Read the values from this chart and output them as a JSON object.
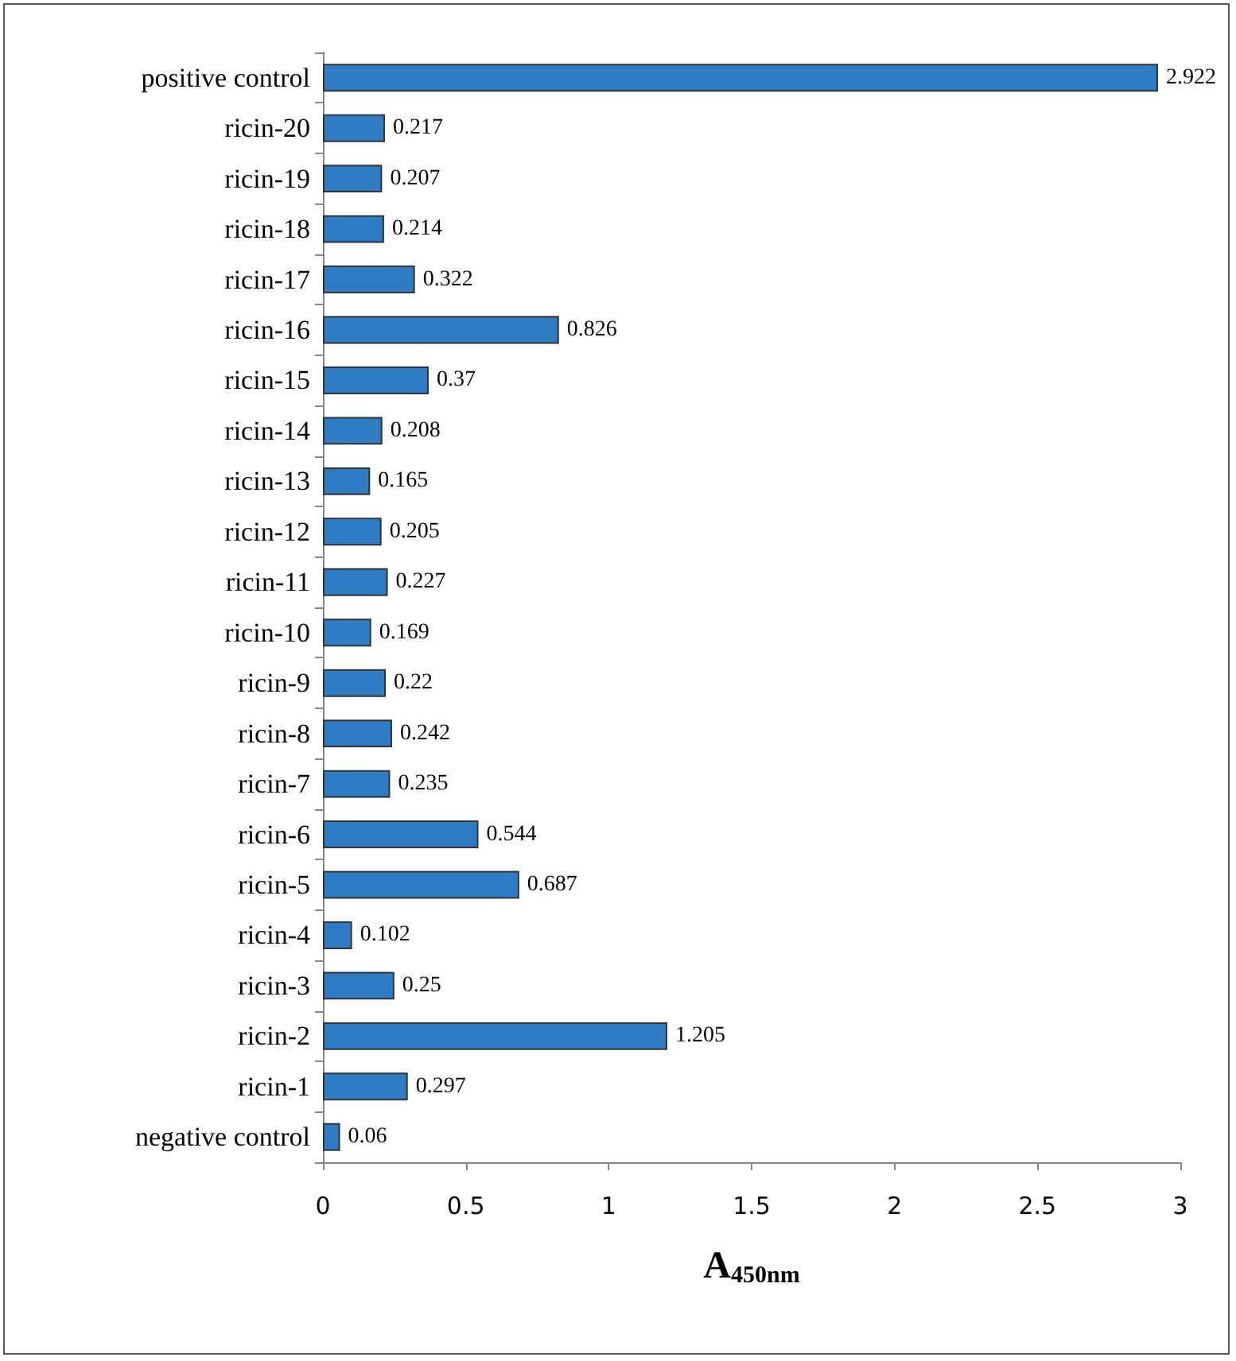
{
  "chart_data": {
    "type": "bar",
    "orientation": "horizontal",
    "xlabel": "A$_{450nm}$",
    "categories": [
      "positive control",
      "ricin-20",
      "ricin-19",
      "ricin-18",
      "ricin-17",
      "ricin-16",
      "ricin-15",
      "ricin-14",
      "ricin-13",
      "ricin-12",
      "ricin-11",
      "ricin-10",
      "ricin-9",
      "ricin-8",
      "ricin-7",
      "ricin-6",
      "ricin-5",
      "ricin-4",
      "ricin-3",
      "ricin-2",
      "ricin-1",
      "negative control"
    ],
    "values": [
      2.922,
      0.217,
      0.207,
      0.214,
      0.322,
      0.826,
      0.37,
      0.208,
      0.165,
      0.205,
      0.227,
      0.169,
      0.22,
      0.242,
      0.235,
      0.544,
      0.687,
      0.102,
      0.25,
      1.205,
      0.297,
      0.06
    ],
    "color": "#2e7dc4",
    "xlim": [
      0,
      3
    ],
    "xticks": [
      0,
      0.5,
      1,
      1.5,
      2,
      2.5,
      3
    ],
    "grid": false,
    "data_labels": true
  }
}
